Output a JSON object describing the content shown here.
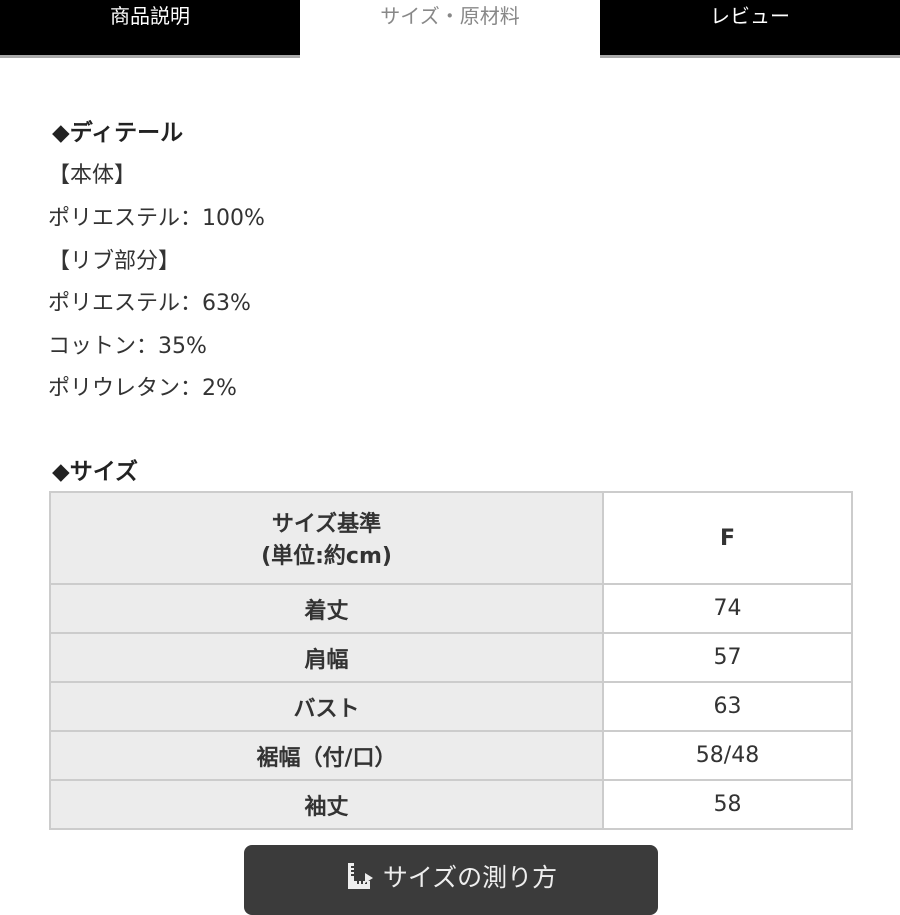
{
  "tabs": [
    {
      "label": "商品説明"
    },
    {
      "label": "サイズ・原材料",
      "active": true
    },
    {
      "label": "レビュー"
    }
  ],
  "details": {
    "heading": "◆ディテール",
    "lines": [
      "【本体】",
      "ポリエステル：100%",
      "【リブ部分】",
      "ポリエステル：63%",
      "コットン：35%",
      "ポリウレタン：2%"
    ]
  },
  "size": {
    "heading": "◆サイズ",
    "header_label_1": "サイズ基準",
    "header_label_2": "(単位:約cm)",
    "header_size": "F",
    "rows": [
      {
        "label": "着丈",
        "value": "74"
      },
      {
        "label": "肩幅",
        "value": "57"
      },
      {
        "label": "バスト",
        "value": "63"
      },
      {
        "label": "裾幅（付/口）",
        "value": "58/48"
      },
      {
        "label": "袖丈",
        "value": "58"
      }
    ]
  },
  "button": {
    "label": "サイズの測り方",
    "icon": "ruler-icon"
  }
}
